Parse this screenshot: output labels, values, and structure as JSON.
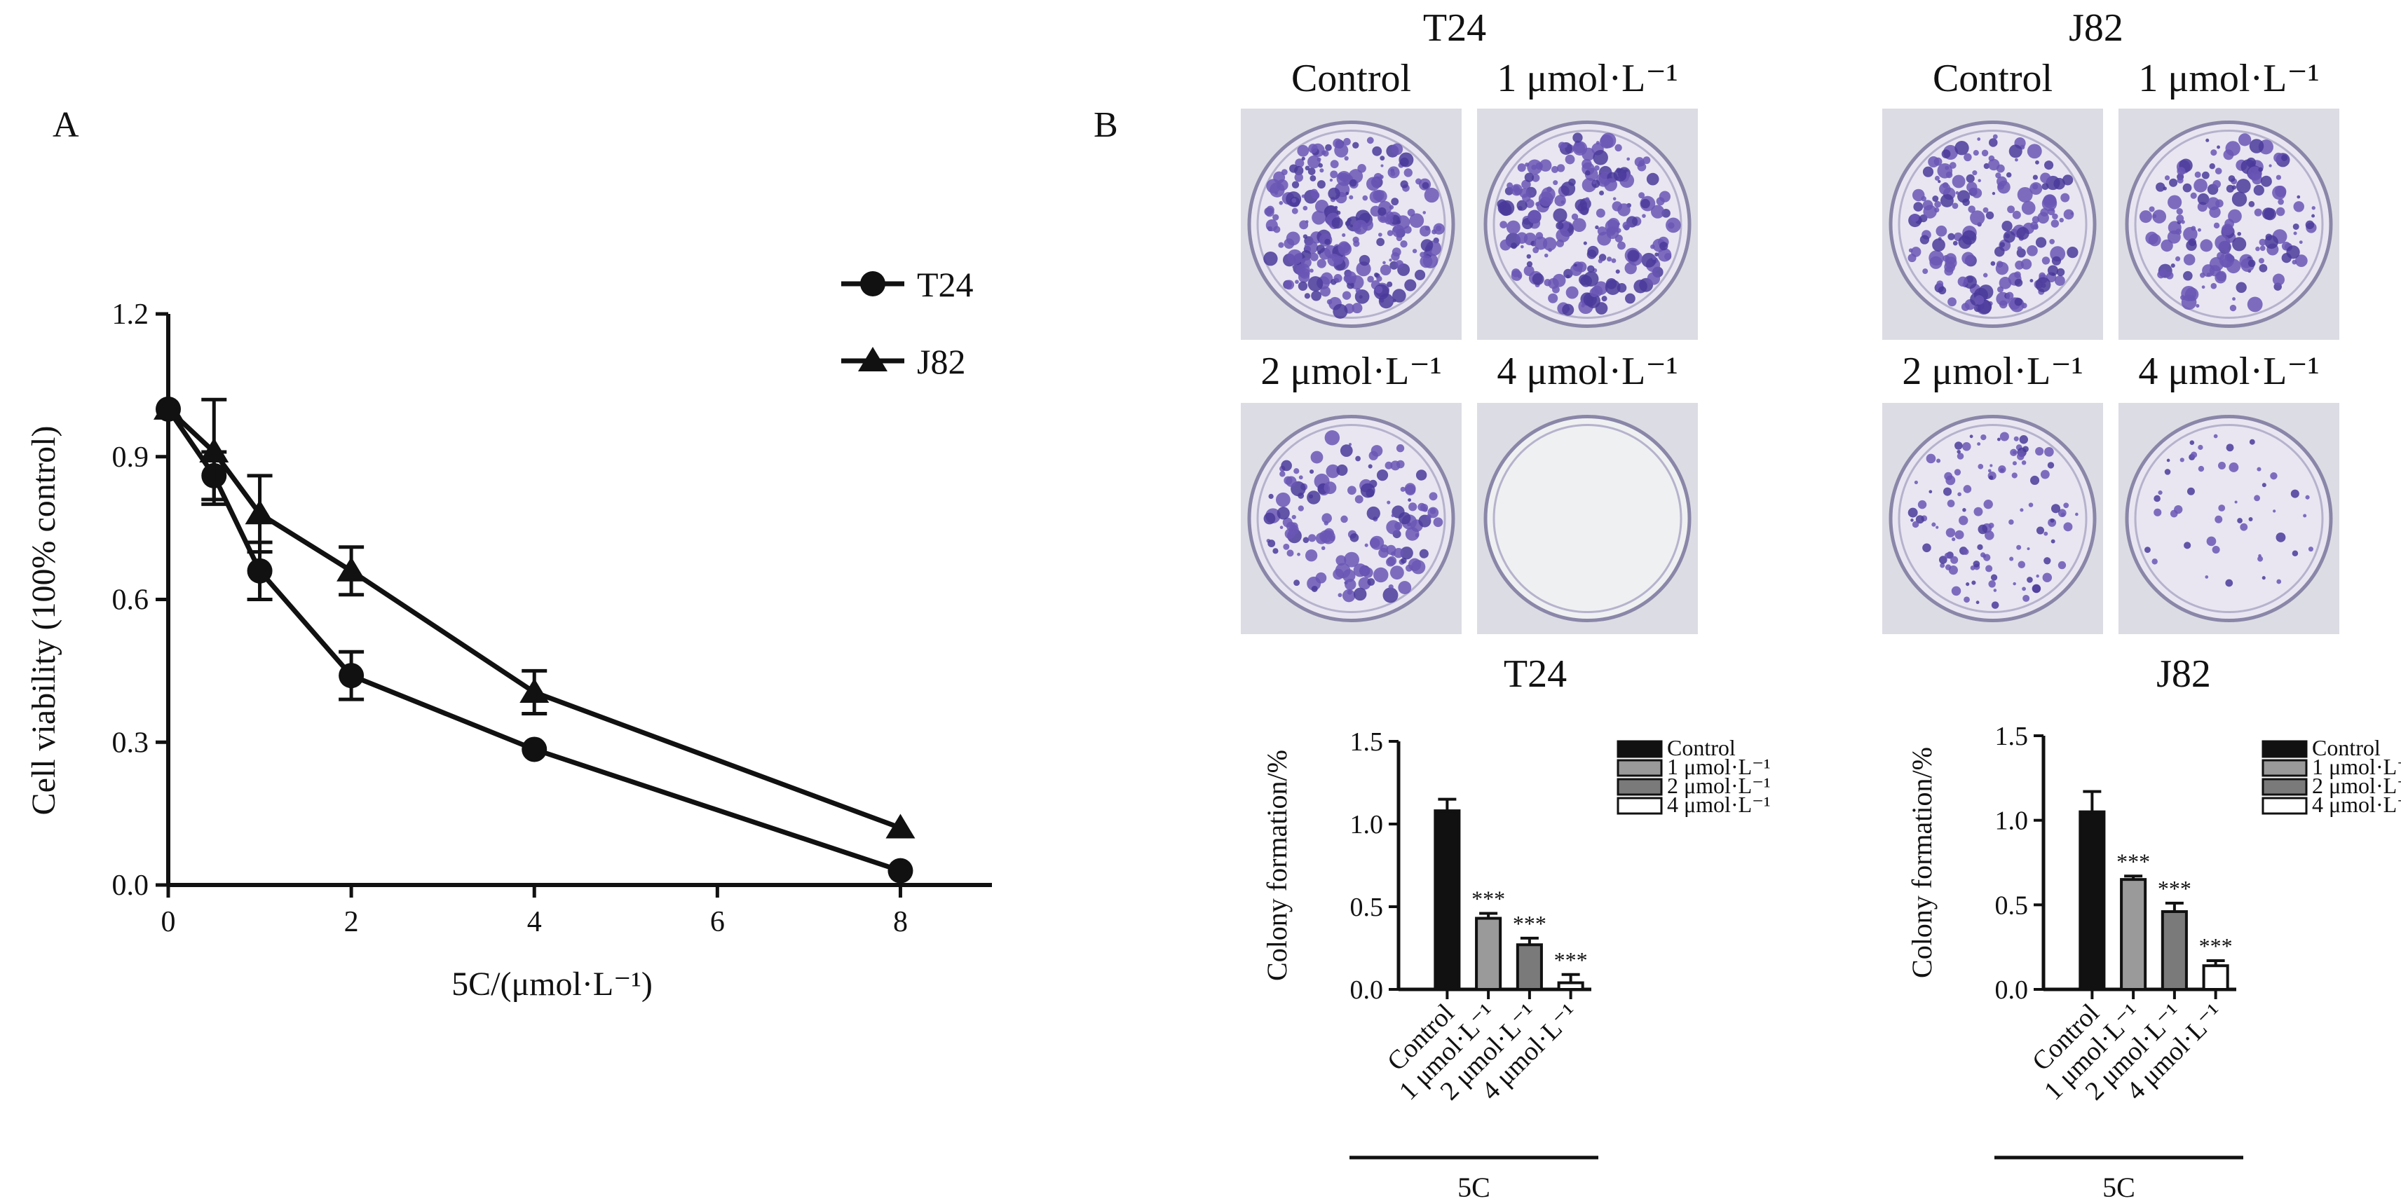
{
  "panel_labels": {
    "a": "A",
    "b": "B"
  },
  "colors": {
    "ink": "#111111",
    "stain": "#6a56b5",
    "stain_dark": "#4a3a9a",
    "plate_bg": "#e9e6f2",
    "empty_plate": "#eef0f2",
    "bar_control": "#111111",
    "bar_1": "#9a9a9a",
    "bar_2": "#7a7a7a",
    "bar_4": "#ffffff"
  },
  "plates": {
    "groups": [
      {
        "cell_line": "T24",
        "labels": [
          "Control",
          "1 μmol·L⁻¹",
          "2 μmol·L⁻¹",
          "4 μmol·L⁻¹"
        ],
        "colony_density": [
          1.0,
          0.85,
          0.55,
          0.0
        ]
      },
      {
        "cell_line": "J82",
        "labels": [
          "Control",
          "1 μmol·L⁻¹",
          "2 μmol·L⁻¹",
          "4 μmol·L⁻¹"
        ],
        "colony_density": [
          0.75,
          0.6,
          0.45,
          0.18
        ]
      }
    ]
  },
  "chart_data": [
    {
      "type": "line",
      "panel": "A",
      "xlabel": "5C/(μmol·L⁻¹)",
      "ylabel": "Cell viability (100% control)",
      "xlim": [
        0,
        9
      ],
      "ylim": [
        0,
        1.2
      ],
      "xticks": [
        0,
        2,
        4,
        6,
        8
      ],
      "yticks": [
        0.0,
        0.3,
        0.6,
        0.9,
        1.2
      ],
      "legend_position": "top-right",
      "series": [
        {
          "name": "T24",
          "marker": "circle",
          "x": [
            0,
            0.5,
            1,
            2,
            4,
            8
          ],
          "y": [
            1.0,
            0.86,
            0.66,
            0.44,
            0.285,
            0.03
          ],
          "err": [
            0.0,
            0.05,
            0.06,
            0.05,
            0.0,
            0.0
          ]
        },
        {
          "name": "J82",
          "marker": "triangle",
          "x": [
            0,
            0.5,
            1,
            2,
            4,
            8
          ],
          "y": [
            1.0,
            0.91,
            0.78,
            0.66,
            0.405,
            0.12
          ],
          "err": [
            0.0,
            0.11,
            0.08,
            0.05,
            0.045,
            0.0
          ]
        }
      ]
    },
    {
      "type": "bar",
      "panel": "B",
      "title": "T24",
      "ylabel": "Colony formation/%",
      "xlabel": "5C",
      "ylim": [
        0,
        1.5
      ],
      "yticks": [
        0.0,
        0.5,
        1.0,
        1.5
      ],
      "categories": [
        "Control",
        "1 μmol·L⁻¹",
        "2 μmol·L⁻¹",
        "4 μmol·L⁻¹"
      ],
      "values": [
        1.08,
        0.43,
        0.27,
        0.04
      ],
      "err": [
        0.07,
        0.03,
        0.04,
        0.05
      ],
      "significance": [
        "",
        "***",
        "***",
        "***"
      ],
      "legend_position": "top-right"
    },
    {
      "type": "bar",
      "panel": "B",
      "title": "J82",
      "ylabel": "Colony formation/%",
      "xlabel": "5C",
      "ylim": [
        0,
        1.5
      ],
      "yticks": [
        0.0,
        0.5,
        1.0,
        1.5
      ],
      "categories": [
        "Control",
        "1 μmol·L⁻¹",
        "2 μmol·L⁻¹",
        "4 μmol·L⁻¹"
      ],
      "values": [
        1.05,
        0.65,
        0.46,
        0.14
      ],
      "err": [
        0.12,
        0.02,
        0.05,
        0.03
      ],
      "significance": [
        "",
        "***",
        "***",
        "***"
      ],
      "legend_position": "top-right"
    }
  ]
}
